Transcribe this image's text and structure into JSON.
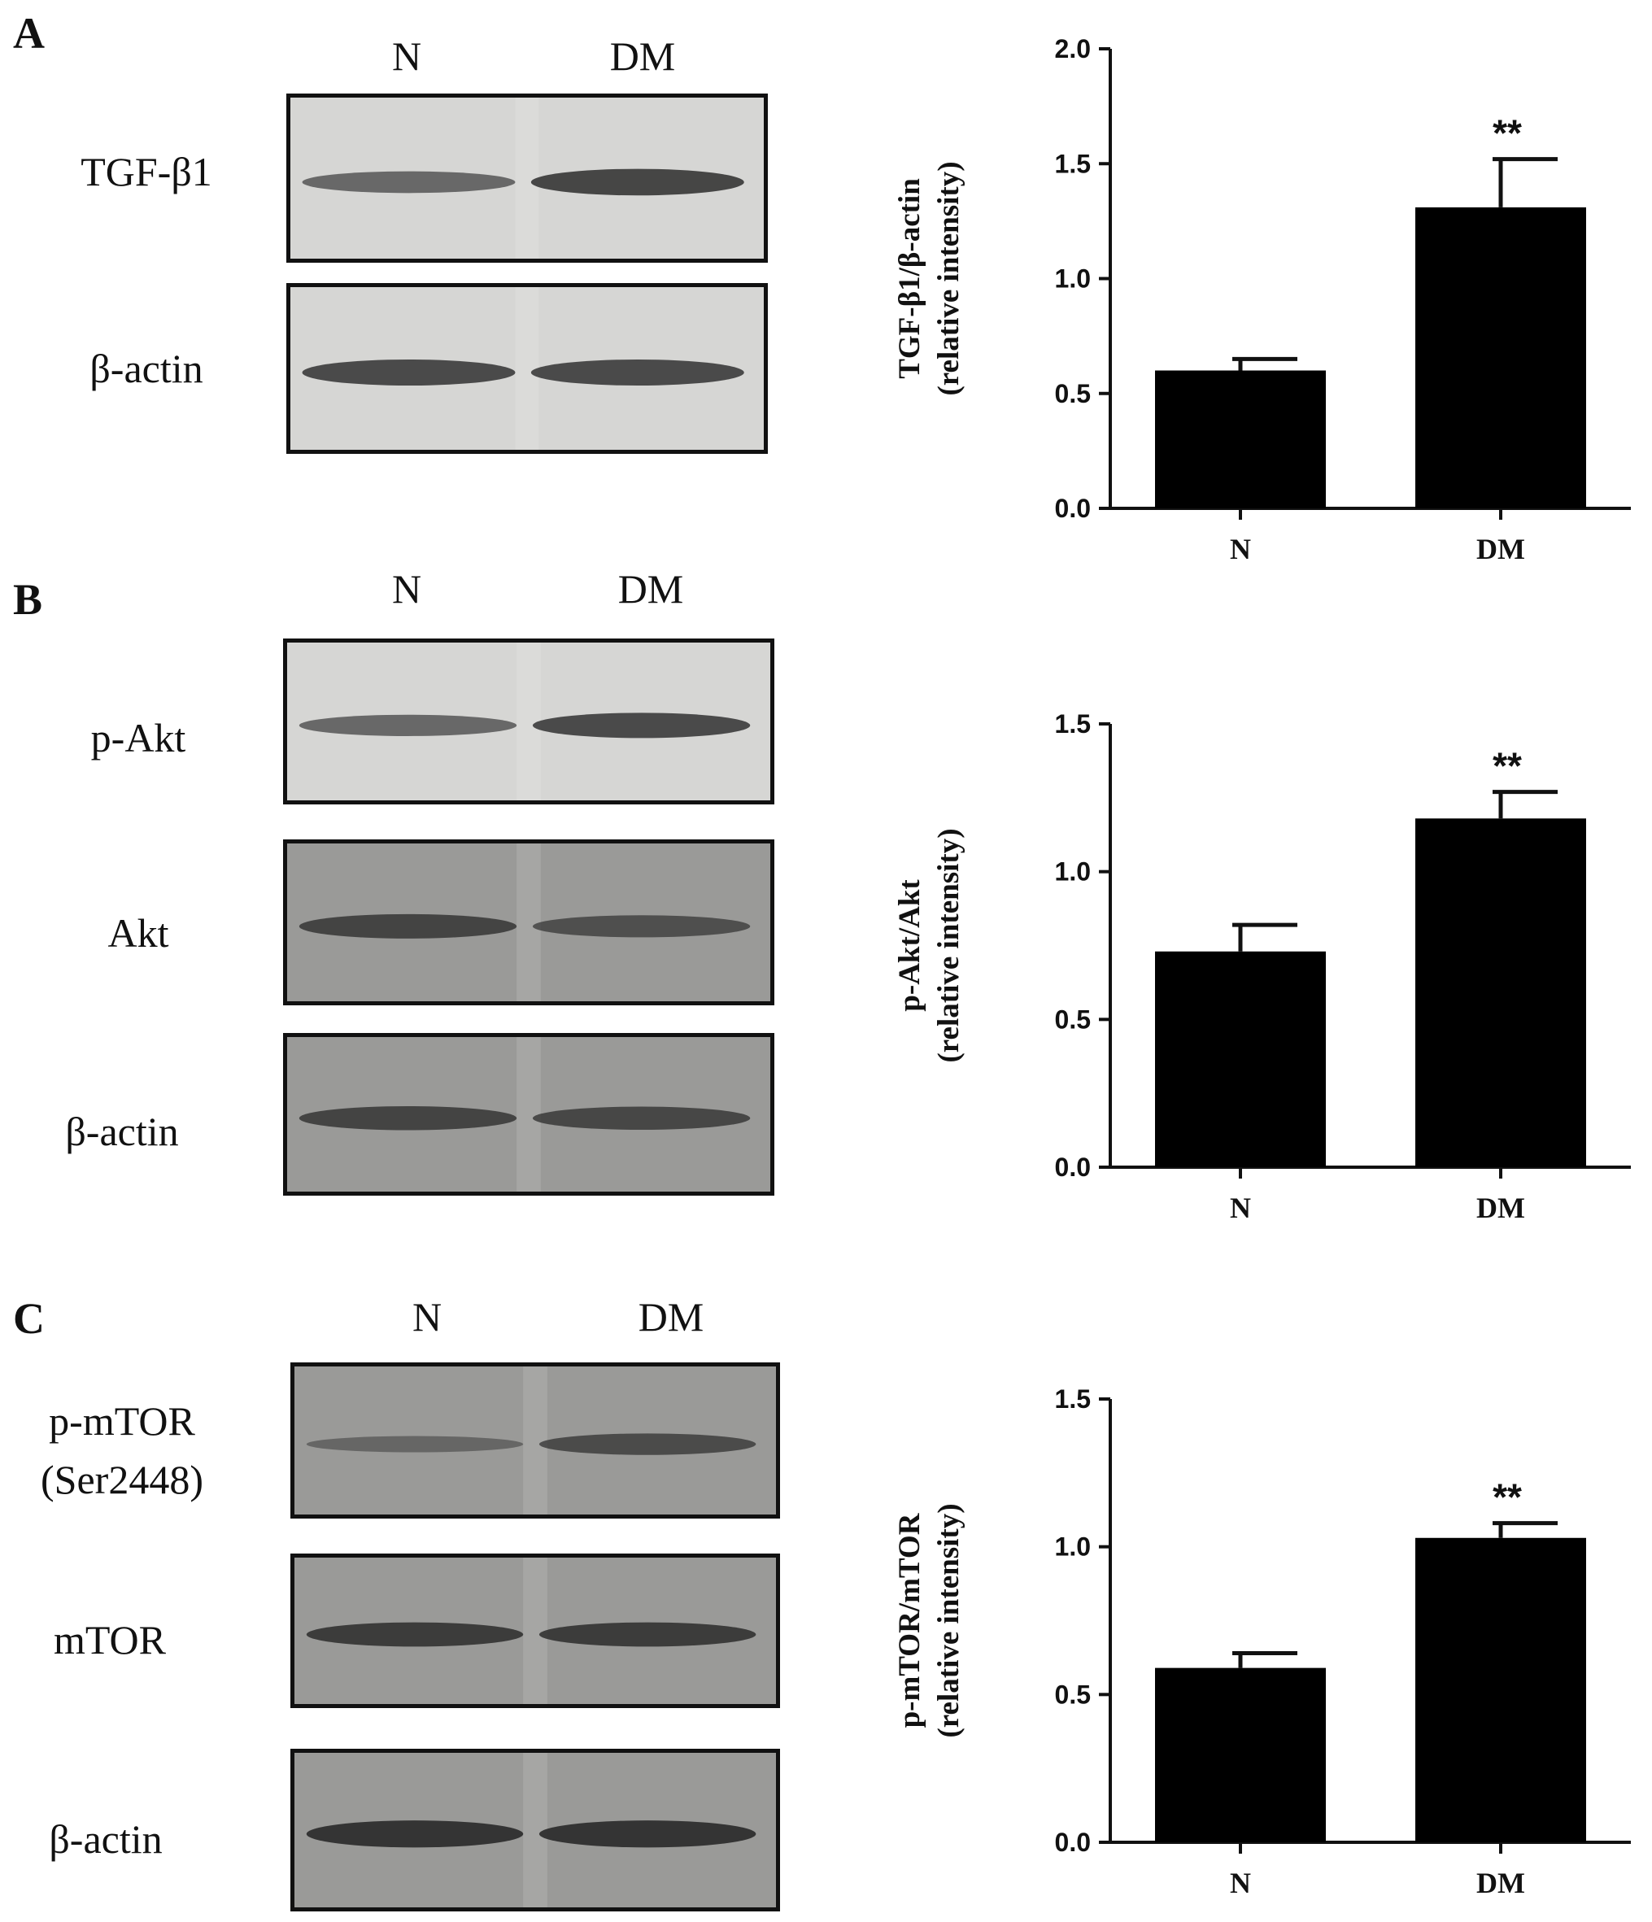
{
  "panels": [
    {
      "letter": "A",
      "lanes": [
        "N",
        "DM"
      ],
      "blots": [
        {
          "label": "TGF-β1",
          "tone": "light",
          "bands": [
            0.55,
            0.85
          ]
        },
        {
          "label": "β-actin",
          "tone": "light",
          "bands": [
            0.8,
            0.8
          ]
        }
      ]
    },
    {
      "letter": "B",
      "lanes": [
        "N",
        "DM"
      ],
      "blots": [
        {
          "label": "p-Akt",
          "tone": "light",
          "bands": [
            0.55,
            0.8
          ]
        },
        {
          "label": "Akt",
          "tone": "mid",
          "bands": [
            0.75,
            0.6
          ]
        },
        {
          "label": "β-actin",
          "tone": "mid",
          "bands": [
            0.75,
            0.7
          ]
        }
      ]
    },
    {
      "letter": "C",
      "lanes": [
        "N",
        "DM"
      ],
      "blots": [
        {
          "label": "p-mTOR",
          "label2": "(Ser2448)",
          "tone": "mid",
          "bands": [
            0.3,
            0.65
          ]
        },
        {
          "label": "mTOR",
          "tone": "mid",
          "bands": [
            0.85,
            0.85
          ]
        },
        {
          "label": "β-actin",
          "tone": "mid",
          "bands": [
            0.95,
            0.95
          ]
        }
      ]
    }
  ],
  "chart_data": [
    {
      "type": "bar",
      "categories": [
        "N",
        "DM"
      ],
      "values": [
        0.6,
        1.31
      ],
      "errors": [
        0.05,
        0.21
      ],
      "annotations": [
        "",
        "**"
      ],
      "ylabel": [
        "TGF-β1/β-actin",
        "(relative intensity)"
      ],
      "ylim": [
        0,
        2.0
      ],
      "yticks": [
        "0.0",
        "0.5",
        "1.0",
        "1.5",
        "2.0"
      ]
    },
    {
      "type": "bar",
      "categories": [
        "N",
        "DM"
      ],
      "values": [
        0.73,
        1.18
      ],
      "errors": [
        0.09,
        0.09
      ],
      "annotations": [
        "",
        "**"
      ],
      "ylabel": [
        "p-Akt/Akt",
        "(relative intensity)"
      ],
      "ylim": [
        0,
        1.5
      ],
      "yticks": [
        "0.0",
        "0.5",
        "1.0",
        "1.5"
      ]
    },
    {
      "type": "bar",
      "categories": [
        "N",
        "DM"
      ],
      "values": [
        0.59,
        1.03
      ],
      "errors": [
        0.05,
        0.05
      ],
      "annotations": [
        "",
        "**"
      ],
      "ylabel": [
        "p-mTOR/mTOR",
        "(relative intensity)"
      ],
      "ylim": [
        0,
        1.5
      ],
      "yticks": [
        "0.0",
        "0.5",
        "1.0",
        "1.5"
      ]
    }
  ],
  "colors": {
    "bar": "#000000",
    "axis": "#111111",
    "blot_light": "#d6d6d4",
    "blot_mid": "#9a9a98",
    "band": "#2a2a2a"
  }
}
